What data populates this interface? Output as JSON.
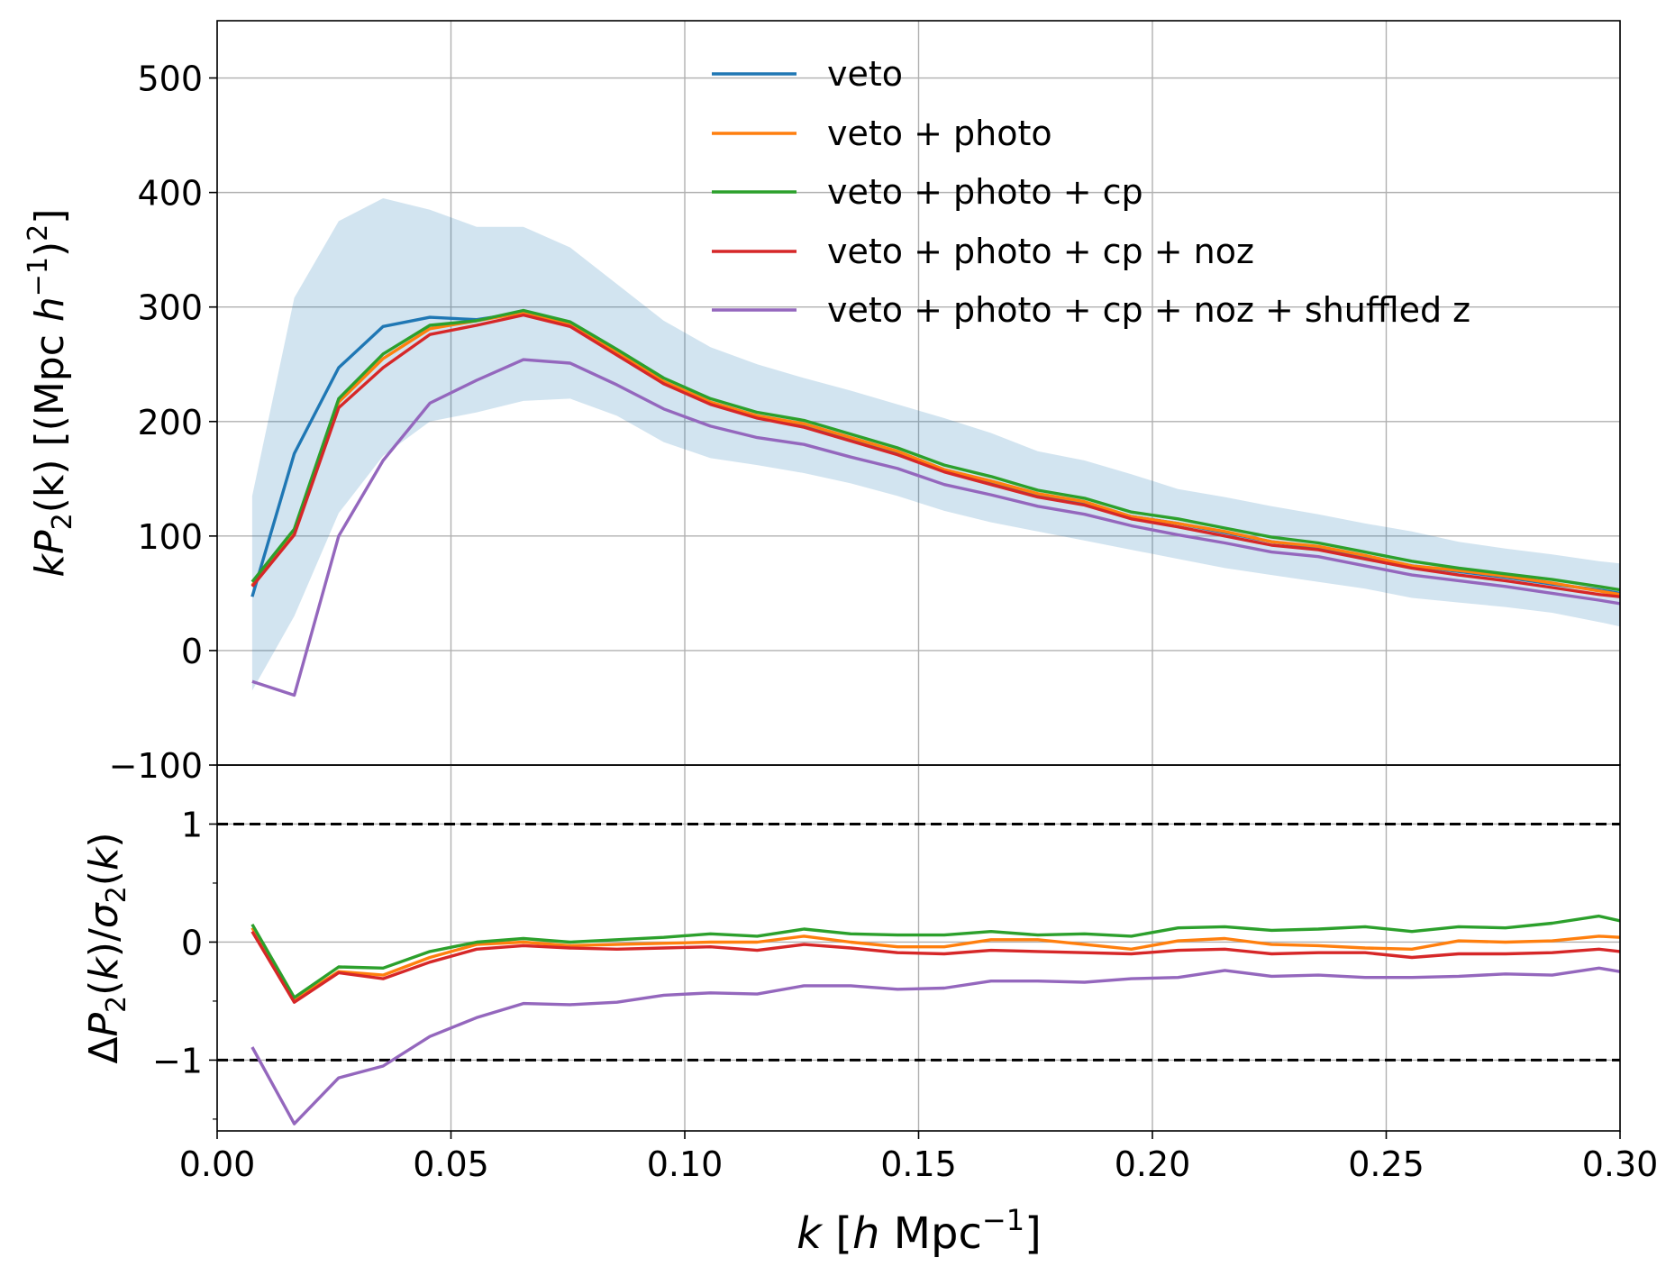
{
  "chart_data": [
    {
      "type": "line",
      "panel": "top",
      "ylabel": "kP₂(k) [(Mpc h⁻¹)²]",
      "ylabel_parts": [
        "k",
        "P",
        "2",
        "(k) [(Mpc ",
        "h",
        "−1",
        ")",
        "2",
        "]"
      ],
      "xlim": [
        0.0,
        0.3
      ],
      "ylim": [
        -100,
        550
      ],
      "yticks": [
        -100,
        0,
        100,
        200,
        300,
        400,
        500
      ],
      "ytick_labels": [
        "−100",
        "0",
        "100",
        "200",
        "300",
        "400",
        "500"
      ],
      "grid": true,
      "legend_position": "top-center",
      "x": [
        0.0075,
        0.0165,
        0.026,
        0.0355,
        0.0455,
        0.0555,
        0.0655,
        0.0755,
        0.0855,
        0.0955,
        0.1055,
        0.1155,
        0.1255,
        0.1355,
        0.1455,
        0.1555,
        0.1655,
        0.1755,
        0.1855,
        0.1955,
        0.2055,
        0.2155,
        0.2255,
        0.2355,
        0.2455,
        0.2555,
        0.2655,
        0.2755,
        0.2855,
        0.2955,
        0.3
      ],
      "band": {
        "color": "#1f77b4",
        "opacity": 0.2,
        "lower": [
          -35,
          30,
          120,
          170,
          200,
          208,
          218,
          220,
          205,
          182,
          168,
          162,
          155,
          146,
          135,
          122,
          112,
          104,
          96,
          88,
          80,
          72,
          66,
          60,
          54,
          46,
          42,
          38,
          33,
          25,
          21
        ],
        "upper": [
          135,
          308,
          375,
          395,
          385,
          370,
          370,
          352,
          320,
          288,
          265,
          250,
          238,
          227,
          215,
          203,
          190,
          174,
          166,
          154,
          141,
          134,
          126,
          119,
          111,
          104,
          95,
          89,
          84,
          78,
          76
        ]
      },
      "series": [
        {
          "name": "veto",
          "color": "#1f77b4",
          "values": [
            47,
            172,
            247,
            283,
            291,
            289,
            295,
            285,
            260,
            233,
            216,
            204,
            196,
            184,
            172,
            157,
            147,
            136,
            129,
            117,
            111,
            103,
            95,
            90,
            82,
            74,
            69,
            64,
            58,
            53,
            50
          ]
        },
        {
          "name": "veto + photo",
          "color": "#ff7f0e",
          "values": [
            57,
            104,
            217,
            255,
            281,
            288,
            295,
            285,
            260,
            235,
            217,
            205,
            198,
            186,
            174,
            158,
            148,
            137,
            130,
            117,
            111,
            104,
            95,
            91,
            83,
            74,
            70,
            65,
            59,
            52,
            49
          ]
        },
        {
          "name": "veto + photo + cp",
          "color": "#2ca02c",
          "values": [
            60,
            106,
            220,
            259,
            284,
            288,
            297,
            287,
            263,
            238,
            220,
            208,
            201,
            189,
            177,
            162,
            152,
            140,
            133,
            121,
            115,
            107,
            99,
            94,
            86,
            78,
            72,
            67,
            62,
            56,
            53
          ]
        },
        {
          "name": "veto + photo + cp + noz",
          "color": "#d62728",
          "values": [
            56,
            101,
            212,
            247,
            276,
            284,
            293,
            283,
            258,
            233,
            215,
            203,
            195,
            183,
            171,
            156,
            145,
            134,
            127,
            115,
            108,
            100,
            92,
            88,
            80,
            72,
            66,
            61,
            55,
            49,
            47
          ]
        },
        {
          "name": "veto + photo + cp + noz + shuffled z",
          "color": "#9467bd",
          "values": [
            -27,
            -39,
            100,
            166,
            216,
            236,
            254,
            251,
            232,
            211,
            196,
            186,
            180,
            169,
            159,
            145,
            136,
            126,
            119,
            109,
            101,
            94,
            86,
            82,
            74,
            66,
            61,
            56,
            50,
            44,
            41
          ]
        }
      ]
    },
    {
      "type": "line",
      "panel": "bottom",
      "ylabel": "ΔP₂(k)/σ₂(k)",
      "ylabel_parts": [
        "Δ",
        "P",
        "2",
        "(",
        "k",
        ")/",
        "σ",
        "2",
        "(",
        "k",
        ")"
      ],
      "xlabel": "k [h Mpc⁻¹]",
      "xlabel_parts": [
        "k",
        " [",
        "h",
        " Mpc",
        "−1",
        "]"
      ],
      "xlim": [
        0.0,
        0.3
      ],
      "ylim": [
        -1.6,
        1.5
      ],
      "xticks": [
        0.0,
        0.05,
        0.1,
        0.15,
        0.2,
        0.25,
        0.3
      ],
      "xtick_labels": [
        "0.00",
        "0.05",
        "0.10",
        "0.15",
        "0.20",
        "0.25",
        "0.30"
      ],
      "yticks": [
        -1,
        0,
        1
      ],
      "ytick_labels": [
        "−1",
        "0",
        "1"
      ],
      "minor_yticks": [
        -1.5,
        -0.5,
        0.5,
        1.5
      ],
      "hlines": [
        1,
        -1
      ],
      "grid": true,
      "x": [
        0.0075,
        0.0165,
        0.026,
        0.0355,
        0.0455,
        0.0555,
        0.0655,
        0.0755,
        0.0855,
        0.0955,
        0.1055,
        0.1155,
        0.1255,
        0.1355,
        0.1455,
        0.1555,
        0.1655,
        0.1755,
        0.1855,
        0.1955,
        0.2055,
        0.2155,
        0.2255,
        0.2355,
        0.2455,
        0.2555,
        0.2655,
        0.2755,
        0.2855,
        0.2955,
        0.3
      ],
      "series": [
        {
          "name": "veto + photo",
          "color": "#ff7f0e",
          "values": [
            0.12,
            -0.49,
            -0.25,
            -0.28,
            -0.13,
            -0.02,
            0.0,
            -0.03,
            -0.02,
            -0.01,
            0.0,
            0.0,
            0.05,
            0.0,
            -0.04,
            -0.04,
            0.02,
            0.02,
            -0.02,
            -0.06,
            0.01,
            0.03,
            -0.02,
            -0.03,
            -0.05,
            -0.06,
            0.01,
            0.0,
            0.01,
            0.05,
            0.04
          ]
        },
        {
          "name": "veto + photo + cp",
          "color": "#2ca02c",
          "values": [
            0.15,
            -0.47,
            -0.21,
            -0.22,
            -0.08,
            0.0,
            0.03,
            0.0,
            0.02,
            0.04,
            0.07,
            0.05,
            0.11,
            0.07,
            0.06,
            0.06,
            0.09,
            0.06,
            0.07,
            0.05,
            0.12,
            0.13,
            0.1,
            0.11,
            0.13,
            0.09,
            0.13,
            0.12,
            0.16,
            0.22,
            0.18
          ]
        },
        {
          "name": "veto + photo + cp + noz",
          "color": "#d62728",
          "values": [
            0.09,
            -0.51,
            -0.26,
            -0.31,
            -0.17,
            -0.06,
            -0.03,
            -0.05,
            -0.06,
            -0.05,
            -0.04,
            -0.07,
            -0.02,
            -0.05,
            -0.09,
            -0.1,
            -0.07,
            -0.08,
            -0.09,
            -0.1,
            -0.07,
            -0.06,
            -0.1,
            -0.09,
            -0.09,
            -0.13,
            -0.1,
            -0.1,
            -0.09,
            -0.06,
            -0.08
          ]
        },
        {
          "name": "veto + photo + cp + noz + shuffled z",
          "color": "#9467bd",
          "values": [
            -0.89,
            -1.54,
            -1.15,
            -1.05,
            -0.8,
            -0.64,
            -0.52,
            -0.53,
            -0.51,
            -0.45,
            -0.43,
            -0.44,
            -0.37,
            -0.37,
            -0.4,
            -0.39,
            -0.33,
            -0.33,
            -0.34,
            -0.31,
            -0.3,
            -0.24,
            -0.29,
            -0.28,
            -0.3,
            -0.3,
            -0.29,
            -0.27,
            -0.28,
            -0.22,
            -0.25
          ]
        }
      ]
    }
  ]
}
